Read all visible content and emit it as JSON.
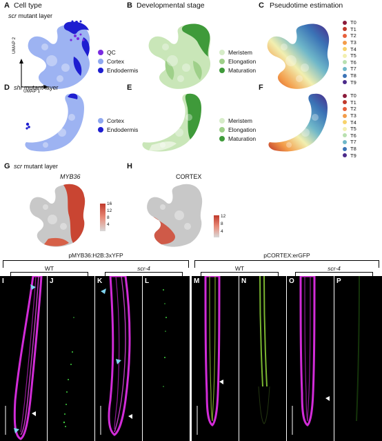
{
  "panels": {
    "A": {
      "letter": "A",
      "title": "Cell type",
      "subtitle_italic": "scr",
      "subtitle_rest": " mutant layer",
      "legend": [
        "QC",
        "Cortex",
        "Endodermis"
      ],
      "legend_colors": [
        "#7a2be0",
        "#8fa8f0",
        "#1e1ed0"
      ],
      "axis_y": "UMAP 2",
      "axis_x": "UMAP 1"
    },
    "B": {
      "letter": "B",
      "title": "Developmental stage",
      "legend": [
        "Meristem",
        "Elongation",
        "Maturation"
      ],
      "legend_colors": [
        "#d6ecc8",
        "#9fd08a",
        "#3f9a3a"
      ]
    },
    "C": {
      "letter": "C",
      "title": "Pseudotime estimation",
      "legend": [
        "T0",
        "T1",
        "T2",
        "T3",
        "T4",
        "T5",
        "T6",
        "T7",
        "T8",
        "T9"
      ],
      "legend_colors": [
        "#8b1a3a",
        "#c0392b",
        "#e8603c",
        "#f39c4a",
        "#f7d26a",
        "#f2efb0",
        "#b8e0b0",
        "#6fb7c9",
        "#3b73b6",
        "#4b2a8a"
      ]
    },
    "D": {
      "letter": "D",
      "subtitle_italic": "shr",
      "subtitle_rest": " mutant layer",
      "legend": [
        "Cortex",
        "Endodermis"
      ],
      "legend_colors": [
        "#8fa8f0",
        "#1e1ed0"
      ]
    },
    "E": {
      "letter": "E",
      "legend": [
        "Meristem",
        "Elongation",
        "Maturation"
      ],
      "legend_colors": [
        "#d6ecc8",
        "#9fd08a",
        "#3f9a3a"
      ]
    },
    "F": {
      "letter": "F",
      "legend": [
        "T0",
        "T1",
        "T2",
        "T3",
        "T4",
        "T5",
        "T6",
        "T7",
        "T8",
        "T9"
      ]
    },
    "G": {
      "letter": "G",
      "subtitle_italic": "scr",
      "subtitle_rest": " mutant layer",
      "gene": "MYB36",
      "ticks": [
        "16",
        "12",
        "8",
        "4"
      ]
    },
    "H": {
      "letter": "H",
      "gene": "CORTEX",
      "ticks": [
        "12",
        "8",
        "4"
      ]
    }
  },
  "micrographs": {
    "group1_label": "pMYB36:H2B:3xYFP",
    "group2_label": "pCORTEX:erGFP",
    "wt_label": "WT",
    "mutant_label": "scr-4",
    "letters": [
      "I",
      "J",
      "K",
      "L",
      "M",
      "N",
      "O",
      "P"
    ]
  }
}
